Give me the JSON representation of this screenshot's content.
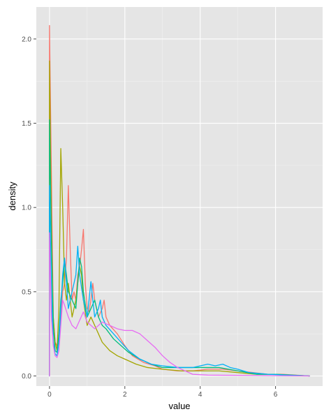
{
  "chart_data": {
    "type": "line",
    "title": "",
    "xlabel": "value",
    "ylabel": "density",
    "xlim": [
      -0.35,
      7.25
    ],
    "ylim": [
      -0.06,
      2.19
    ],
    "x_ticks": [
      0,
      2,
      4,
      6
    ],
    "y_ticks": [
      0.0,
      0.5,
      1.0,
      1.5,
      2.0
    ],
    "x_tick_labels": [
      "0",
      "2",
      "4",
      "6"
    ],
    "y_tick_labels": [
      "0.0",
      "0.5",
      "1.0",
      "1.5",
      "2.0"
    ],
    "grid": true,
    "legend": "none",
    "background": "#e5e5e5",
    "series": [
      {
        "color": "#f8766d",
        "points": [
          [
            0,
            0
          ],
          [
            0,
            2.08
          ],
          [
            0.05,
            1.2
          ],
          [
            0.1,
            0.35
          ],
          [
            0.15,
            0.2
          ],
          [
            0.2,
            0.18
          ],
          [
            0.25,
            0.22
          ],
          [
            0.3,
            0.35
          ],
          [
            0.35,
            0.5
          ],
          [
            0.4,
            0.55
          ],
          [
            0.45,
            0.7
          ],
          [
            0.5,
            1.13
          ],
          [
            0.55,
            0.75
          ],
          [
            0.6,
            0.45
          ],
          [
            0.65,
            0.5
          ],
          [
            0.7,
            0.45
          ],
          [
            0.75,
            0.6
          ],
          [
            0.8,
            0.65
          ],
          [
            0.85,
            0.75
          ],
          [
            0.9,
            0.87
          ],
          [
            0.95,
            0.55
          ],
          [
            1.0,
            0.4
          ],
          [
            1.05,
            0.38
          ],
          [
            1.1,
            0.45
          ],
          [
            1.15,
            0.55
          ],
          [
            1.2,
            0.45
          ],
          [
            1.3,
            0.35
          ],
          [
            1.4,
            0.4
          ],
          [
            1.45,
            0.45
          ],
          [
            1.5,
            0.35
          ],
          [
            1.6,
            0.3
          ],
          [
            1.8,
            0.25
          ],
          [
            2.0,
            0.18
          ],
          [
            2.2,
            0.12
          ],
          [
            2.5,
            0.08
          ],
          [
            2.8,
            0.06
          ],
          [
            3.0,
            0.04
          ],
          [
            3.4,
            0.03
          ],
          [
            3.8,
            0.03
          ],
          [
            4.2,
            0.04
          ],
          [
            4.6,
            0.04
          ],
          [
            5.0,
            0.03
          ],
          [
            5.4,
            0.02
          ],
          [
            5.8,
            0.01
          ],
          [
            6.2,
            0.01
          ],
          [
            6.9,
            0
          ]
        ]
      },
      {
        "color": "#a3a500",
        "points": [
          [
            0,
            0
          ],
          [
            0,
            1.87
          ],
          [
            0.05,
            0.9
          ],
          [
            0.1,
            0.35
          ],
          [
            0.15,
            0.2
          ],
          [
            0.2,
            0.15
          ],
          [
            0.25,
            0.4
          ],
          [
            0.3,
            1.35
          ],
          [
            0.35,
            1.0
          ],
          [
            0.4,
            0.55
          ],
          [
            0.45,
            0.45
          ],
          [
            0.5,
            0.55
          ],
          [
            0.55,
            0.45
          ],
          [
            0.6,
            0.35
          ],
          [
            0.7,
            0.45
          ],
          [
            0.8,
            0.65
          ],
          [
            0.85,
            0.6
          ],
          [
            0.9,
            0.45
          ],
          [
            1.0,
            0.3
          ],
          [
            1.1,
            0.35
          ],
          [
            1.2,
            0.3
          ],
          [
            1.3,
            0.25
          ],
          [
            1.4,
            0.2
          ],
          [
            1.6,
            0.15
          ],
          [
            1.8,
            0.12
          ],
          [
            2.0,
            0.1
          ],
          [
            2.3,
            0.07
          ],
          [
            2.6,
            0.05
          ],
          [
            3.0,
            0.04
          ],
          [
            3.5,
            0.03
          ],
          [
            4.0,
            0.03
          ],
          [
            4.5,
            0.03
          ],
          [
            5.0,
            0.02
          ],
          [
            5.5,
            0.01
          ],
          [
            6.0,
            0.01
          ],
          [
            6.9,
            0
          ]
        ]
      },
      {
        "color": "#00bf7d",
        "points": [
          [
            0,
            0
          ],
          [
            0,
            1.52
          ],
          [
            0.05,
            0.8
          ],
          [
            0.1,
            0.3
          ],
          [
            0.15,
            0.15
          ],
          [
            0.2,
            0.14
          ],
          [
            0.25,
            0.25
          ],
          [
            0.3,
            0.45
          ],
          [
            0.35,
            0.55
          ],
          [
            0.4,
            0.68
          ],
          [
            0.45,
            0.6
          ],
          [
            0.5,
            0.5
          ],
          [
            0.6,
            0.45
          ],
          [
            0.7,
            0.4
          ],
          [
            0.8,
            0.7
          ],
          [
            0.85,
            0.65
          ],
          [
            0.9,
            0.5
          ],
          [
            1.0,
            0.35
          ],
          [
            1.1,
            0.4
          ],
          [
            1.2,
            0.45
          ],
          [
            1.3,
            0.35
          ],
          [
            1.4,
            0.3
          ],
          [
            1.5,
            0.28
          ],
          [
            1.7,
            0.22
          ],
          [
            1.9,
            0.18
          ],
          [
            2.1,
            0.14
          ],
          [
            2.4,
            0.1
          ],
          [
            2.7,
            0.07
          ],
          [
            3.0,
            0.05
          ],
          [
            3.5,
            0.05
          ],
          [
            4.0,
            0.05
          ],
          [
            4.5,
            0.05
          ],
          [
            5.0,
            0.03
          ],
          [
            5.5,
            0.01
          ],
          [
            6.0,
            0.01
          ],
          [
            6.9,
            0
          ]
        ]
      },
      {
        "color": "#00b0f6",
        "points": [
          [
            0,
            0
          ],
          [
            0,
            1.13
          ],
          [
            0.05,
            0.5
          ],
          [
            0.1,
            0.2
          ],
          [
            0.15,
            0.13
          ],
          [
            0.2,
            0.12
          ],
          [
            0.25,
            0.2
          ],
          [
            0.3,
            0.4
          ],
          [
            0.35,
            0.6
          ],
          [
            0.4,
            0.7
          ],
          [
            0.45,
            0.55
          ],
          [
            0.5,
            0.4
          ],
          [
            0.6,
            0.5
          ],
          [
            0.7,
            0.6
          ],
          [
            0.75,
            0.77
          ],
          [
            0.8,
            0.6
          ],
          [
            0.9,
            0.45
          ],
          [
            1.0,
            0.35
          ],
          [
            1.05,
            0.45
          ],
          [
            1.1,
            0.56
          ],
          [
            1.15,
            0.45
          ],
          [
            1.2,
            0.35
          ],
          [
            1.3,
            0.4
          ],
          [
            1.35,
            0.45
          ],
          [
            1.4,
            0.35
          ],
          [
            1.5,
            0.3
          ],
          [
            1.7,
            0.25
          ],
          [
            1.9,
            0.2
          ],
          [
            2.1,
            0.15
          ],
          [
            2.4,
            0.1
          ],
          [
            2.7,
            0.07
          ],
          [
            3.0,
            0.06
          ],
          [
            3.4,
            0.05
          ],
          [
            3.8,
            0.05
          ],
          [
            4.2,
            0.07
          ],
          [
            4.4,
            0.06
          ],
          [
            4.6,
            0.07
          ],
          [
            4.8,
            0.05
          ],
          [
            5.0,
            0.04
          ],
          [
            5.3,
            0.02
          ],
          [
            5.8,
            0.01
          ],
          [
            6.9,
            0
          ]
        ]
      },
      {
        "color": "#e76bf3",
        "points": [
          [
            0,
            0
          ],
          [
            0,
            0.85
          ],
          [
            0.05,
            0.35
          ],
          [
            0.1,
            0.18
          ],
          [
            0.15,
            0.12
          ],
          [
            0.2,
            0.11
          ],
          [
            0.25,
            0.15
          ],
          [
            0.3,
            0.3
          ],
          [
            0.35,
            0.45
          ],
          [
            0.4,
            0.42
          ],
          [
            0.5,
            0.35
          ],
          [
            0.6,
            0.3
          ],
          [
            0.7,
            0.28
          ],
          [
            0.8,
            0.33
          ],
          [
            0.9,
            0.38
          ],
          [
            1.0,
            0.32
          ],
          [
            1.1,
            0.3
          ],
          [
            1.2,
            0.28
          ],
          [
            1.3,
            0.3
          ],
          [
            1.4,
            0.32
          ],
          [
            1.6,
            0.3
          ],
          [
            1.8,
            0.28
          ],
          [
            2.0,
            0.27
          ],
          [
            2.2,
            0.27
          ],
          [
            2.4,
            0.25
          ],
          [
            2.6,
            0.21
          ],
          [
            2.8,
            0.17
          ],
          [
            3.0,
            0.12
          ],
          [
            3.2,
            0.08
          ],
          [
            3.4,
            0.05
          ],
          [
            3.6,
            0.03
          ],
          [
            3.8,
            0.01
          ],
          [
            4.2,
            0.005
          ],
          [
            6.9,
            0
          ]
        ]
      }
    ]
  }
}
